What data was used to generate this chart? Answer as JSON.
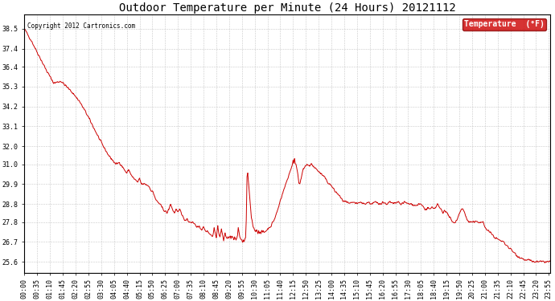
{
  "title": "Outdoor Temperature per Minute (24 Hours) 20121112",
  "copyright_text": "Copyright 2012 Cartronics.com",
  "legend_label": "Temperature  (°F)",
  "line_color": "#cc0000",
  "legend_bg": "#cc0000",
  "legend_text_color": "#ffffff",
  "background_color": "#ffffff",
  "grid_color": "#bbbbbb",
  "ylim": [
    25.0,
    39.3
  ],
  "yticks": [
    25.6,
    26.7,
    27.8,
    28.8,
    29.9,
    31.0,
    32.0,
    33.1,
    34.2,
    35.3,
    36.4,
    37.4,
    38.5
  ],
  "xtick_interval": 35,
  "title_fontsize": 10,
  "axis_fontsize": 6,
  "total_minutes": 1440
}
